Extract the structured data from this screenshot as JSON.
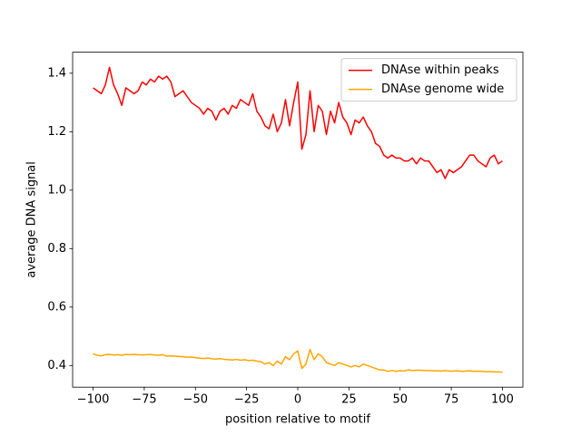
{
  "chart_data": {
    "type": "line",
    "xlabel": "position relative to motif",
    "ylabel": "average DNA signal",
    "x": [
      -100,
      -98,
      -96,
      -94,
      -92,
      -90,
      -88,
      -86,
      -84,
      -82,
      -80,
      -78,
      -76,
      -74,
      -72,
      -70,
      -68,
      -66,
      -64,
      -62,
      -60,
      -58,
      -56,
      -54,
      -52,
      -50,
      -48,
      -46,
      -44,
      -42,
      -40,
      -38,
      -36,
      -34,
      -32,
      -30,
      -28,
      -26,
      -24,
      -22,
      -20,
      -18,
      -16,
      -14,
      -12,
      -10,
      -8,
      -6,
      -4,
      -2,
      0,
      2,
      4,
      6,
      8,
      10,
      12,
      14,
      16,
      18,
      20,
      22,
      24,
      26,
      28,
      30,
      32,
      34,
      36,
      38,
      40,
      42,
      44,
      46,
      48,
      50,
      52,
      54,
      56,
      58,
      60,
      62,
      64,
      66,
      68,
      70,
      72,
      74,
      76,
      78,
      80,
      82,
      84,
      86,
      88,
      90,
      92,
      94,
      96,
      98,
      100
    ],
    "series": [
      {
        "name": "DNAse within peaks",
        "color": "#ff0000",
        "values": [
          1.35,
          1.34,
          1.33,
          1.36,
          1.42,
          1.36,
          1.33,
          1.29,
          1.35,
          1.34,
          1.33,
          1.34,
          1.37,
          1.36,
          1.38,
          1.37,
          1.39,
          1.38,
          1.39,
          1.37,
          1.32,
          1.33,
          1.34,
          1.32,
          1.3,
          1.29,
          1.28,
          1.26,
          1.28,
          1.27,
          1.24,
          1.27,
          1.28,
          1.26,
          1.29,
          1.28,
          1.31,
          1.3,
          1.29,
          1.33,
          1.27,
          1.25,
          1.22,
          1.21,
          1.26,
          1.2,
          1.23,
          1.31,
          1.22,
          1.3,
          1.37,
          1.14,
          1.19,
          1.34,
          1.2,
          1.29,
          1.27,
          1.19,
          1.27,
          1.23,
          1.3,
          1.25,
          1.23,
          1.19,
          1.24,
          1.23,
          1.25,
          1.22,
          1.2,
          1.16,
          1.15,
          1.12,
          1.11,
          1.12,
          1.11,
          1.11,
          1.1,
          1.1,
          1.11,
          1.09,
          1.11,
          1.1,
          1.1,
          1.08,
          1.06,
          1.07,
          1.04,
          1.07,
          1.06,
          1.07,
          1.08,
          1.1,
          1.12,
          1.12,
          1.1,
          1.09,
          1.08,
          1.11,
          1.12,
          1.09,
          1.1
        ]
      },
      {
        "name": "DNAse genome wide",
        "color": "#ffa500",
        "values": [
          0.44,
          0.435,
          0.433,
          0.437,
          0.438,
          0.436,
          0.437,
          0.435,
          0.438,
          0.437,
          0.438,
          0.437,
          0.436,
          0.437,
          0.438,
          0.436,
          0.435,
          0.437,
          0.432,
          0.433,
          0.432,
          0.431,
          0.43,
          0.428,
          0.429,
          0.427,
          0.425,
          0.424,
          0.426,
          0.423,
          0.422,
          0.424,
          0.421,
          0.42,
          0.419,
          0.421,
          0.418,
          0.42,
          0.417,
          0.418,
          0.415,
          0.413,
          0.405,
          0.41,
          0.4,
          0.415,
          0.405,
          0.43,
          0.42,
          0.44,
          0.45,
          0.39,
          0.405,
          0.455,
          0.42,
          0.44,
          0.43,
          0.41,
          0.405,
          0.4,
          0.41,
          0.405,
          0.4,
          0.395,
          0.4,
          0.395,
          0.405,
          0.4,
          0.395,
          0.39,
          0.385,
          0.385,
          0.38,
          0.383,
          0.38,
          0.382,
          0.381,
          0.385,
          0.383,
          0.384,
          0.384,
          0.383,
          0.383,
          0.382,
          0.382,
          0.381,
          0.383,
          0.381,
          0.381,
          0.382,
          0.38,
          0.381,
          0.382,
          0.38,
          0.381,
          0.38,
          0.379,
          0.379,
          0.378,
          0.378,
          0.377
        ]
      }
    ],
    "xlim": [
      -110,
      110
    ],
    "ylim": [
      0.326,
      1.472
    ],
    "xticks": [
      {
        "value": -100,
        "label": "−100"
      },
      {
        "value": -75,
        "label": "−75"
      },
      {
        "value": -50,
        "label": "−50"
      },
      {
        "value": -25,
        "label": "−25"
      },
      0,
      25,
      50,
      75,
      100
    ],
    "yticks": [
      0.4,
      0.6,
      0.8,
      {
        "value": 1,
        "label": "1.0"
      },
      1.2,
      1.4
    ],
    "legend": "upper right",
    "grid": false
  }
}
